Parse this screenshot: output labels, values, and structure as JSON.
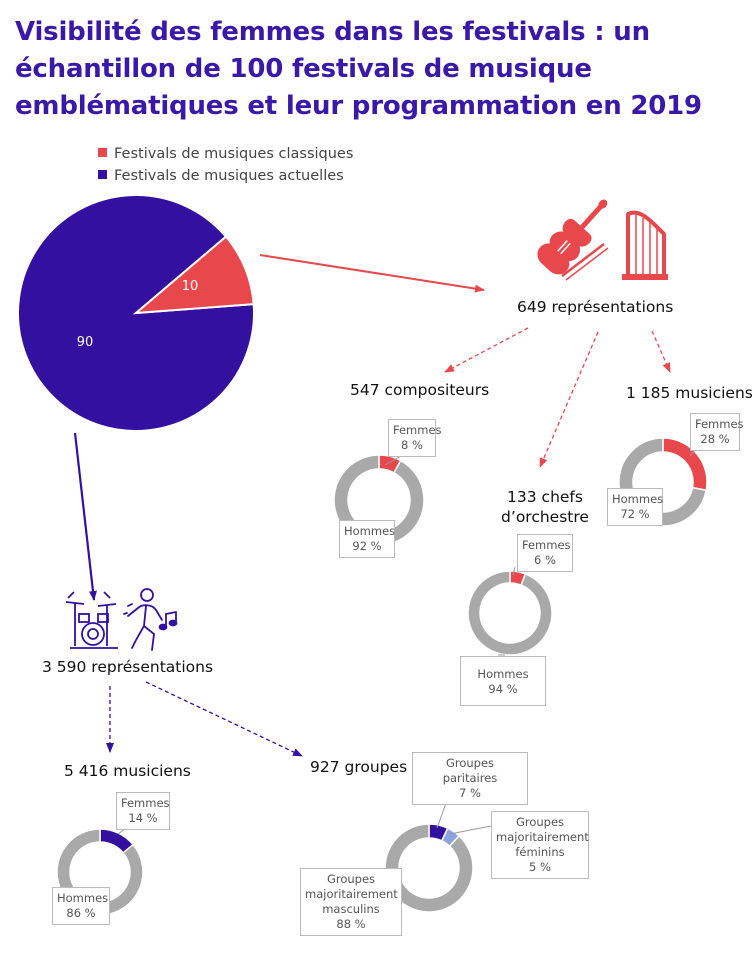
{
  "title": "Visibilité des femmes dans les festivals : un échantillon de 100 festivals de musique emblématiques et leur programmation en 2019",
  "colors": {
    "classique": "#e8474c",
    "actuelle": "#3410a0",
    "hommes": "#a9a9a9",
    "feminin": "#8fa3e0",
    "title": "#3a18a8"
  },
  "icons": {
    "classique": [
      "violin-icon",
      "harp-icon"
    ],
    "actuelle": [
      "drum-kit-icon",
      "dancer-icon"
    ]
  },
  "chart_data": [
    {
      "type": "pie",
      "legend": [
        "Festivals de musiques classiques",
        "Festivals de musiques actuelles"
      ],
      "legend_position": "top",
      "series": [
        {
          "name": "Festivals de musiques classiques",
          "value": 10,
          "label": "10"
        },
        {
          "name": "Festivals de musiques actuelles",
          "value": 90,
          "label": "90"
        }
      ]
    },
    {
      "type": "pie",
      "style": "donut",
      "title": "547 compositeurs",
      "series": [
        {
          "name": "Femmes",
          "value": 8,
          "label": "8 %"
        },
        {
          "name": "Hommes",
          "value": 92,
          "label": "92 %"
        }
      ]
    },
    {
      "type": "pie",
      "style": "donut",
      "title": "133 chefs d’orchestre",
      "series": [
        {
          "name": "Femmes",
          "value": 6,
          "label": "6 %"
        },
        {
          "name": "Hommes",
          "value": 94,
          "label": "94 %"
        }
      ]
    },
    {
      "type": "pie",
      "style": "donut",
      "title": "1 185 musiciens",
      "series": [
        {
          "name": "Femmes",
          "value": 28,
          "label": "28 %"
        },
        {
          "name": "Hommes",
          "value": 72,
          "label": "72 %"
        }
      ]
    },
    {
      "type": "pie",
      "style": "donut",
      "title": "5 416 musiciens",
      "series": [
        {
          "name": "Femmes",
          "value": 14,
          "label": "14 %"
        },
        {
          "name": "Hommes",
          "value": 86,
          "label": "86 %"
        }
      ]
    },
    {
      "type": "pie",
      "style": "donut",
      "title": "927 groupes",
      "series": [
        {
          "name": "Groupes paritaires",
          "value": 7,
          "label": "7 %"
        },
        {
          "name": "Groupes majoritairement féminins",
          "value": 5,
          "label": "5 %"
        },
        {
          "name": "Groupes majoritairement masculins",
          "value": 88,
          "label": "88 %"
        }
      ]
    }
  ],
  "texts": {
    "classique_total": "649 représentations",
    "actuelle_total": "3 590 représentations"
  }
}
